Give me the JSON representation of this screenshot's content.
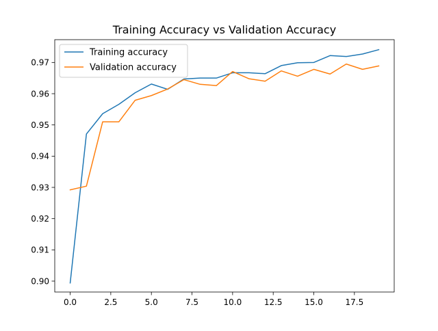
{
  "chart_data": {
    "type": "line",
    "title": "Training Accuracy vs Validation Accuracy",
    "xlabel": "",
    "ylabel": "",
    "xlim": [
      -0.95,
      19.95
    ],
    "ylim": [
      0.8965,
      0.9773
    ],
    "x_ticks": [
      0.0,
      2.5,
      5.0,
      7.5,
      10.0,
      12.5,
      15.0,
      17.5
    ],
    "x_tick_labels": [
      "0.0",
      "2.5",
      "5.0",
      "7.5",
      "10.0",
      "12.5",
      "15.0",
      "17.5"
    ],
    "y_ticks": [
      0.9,
      0.91,
      0.92,
      0.93,
      0.94,
      0.95,
      0.96,
      0.97
    ],
    "y_tick_labels": [
      "0.90",
      "0.91",
      "0.92",
      "0.93",
      "0.94",
      "0.95",
      "0.96",
      "0.97"
    ],
    "grid": false,
    "legend_position": "top-left",
    "x": [
      0,
      1,
      2,
      3,
      4,
      5,
      6,
      7,
      8,
      9,
      10,
      11,
      12,
      13,
      14,
      15,
      16,
      17,
      18,
      19
    ],
    "series": [
      {
        "name": "Training accuracy",
        "color": "#1f77b4",
        "values": [
          0.8994,
          0.9471,
          0.9536,
          0.9566,
          0.9603,
          0.9631,
          0.9614,
          0.9647,
          0.965,
          0.965,
          0.9667,
          0.9667,
          0.9664,
          0.969,
          0.9699,
          0.97,
          0.9722,
          0.9719,
          0.9727,
          0.9741
        ]
      },
      {
        "name": "Validation accuracy",
        "color": "#ff7f0e",
        "values": [
          0.9292,
          0.9304,
          0.951,
          0.951,
          0.9579,
          0.9594,
          0.9615,
          0.9645,
          0.963,
          0.9626,
          0.9671,
          0.9648,
          0.964,
          0.9673,
          0.9656,
          0.9678,
          0.9663,
          0.9695,
          0.9678,
          0.9689
        ]
      }
    ]
  }
}
